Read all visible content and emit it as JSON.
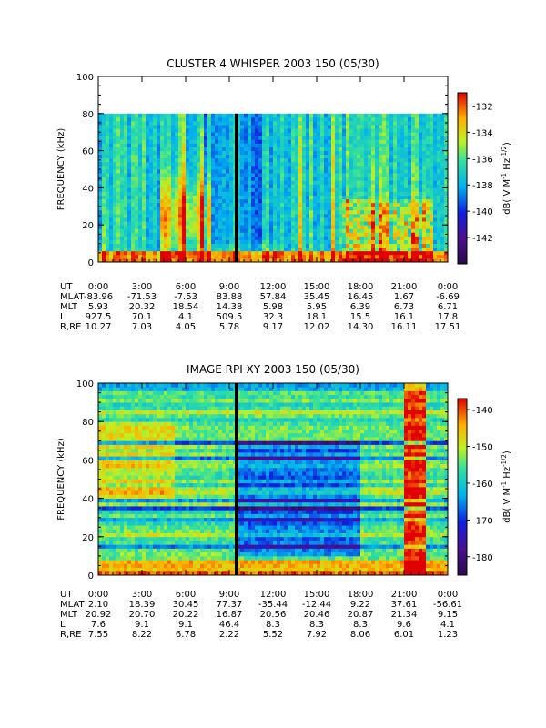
{
  "chart_data": [
    {
      "type": "heatmap",
      "title": "CLUSTER 4 WHISPER 2003 150 (05/30)",
      "ylabel": "FREQUENCY (kHz)",
      "ylim": [
        0,
        100
      ],
      "yticks": [
        "0",
        "20",
        "40",
        "60",
        "80",
        "100"
      ],
      "data_upper_limit_khz": 80,
      "xticks": [
        "0:00",
        "3:00",
        "6:00",
        "9:00",
        "12:00",
        "15:00",
        "18:00",
        "21:00",
        "0:00"
      ],
      "colorbar": {
        "label": "dB( V M⁻¹ Hz⁻¹ᐟ²)",
        "label_parts": [
          "dB( V M",
          "-1",
          " Hz",
          "-1/2",
          ")"
        ],
        "range": [
          -144,
          -131
        ],
        "ticks": [
          "-132",
          "-134",
          "-136",
          "-138",
          "-140",
          "-142"
        ]
      },
      "ephemeris": {
        "labels": [
          "UT",
          "MLAT",
          "MLT",
          "L",
          "R,RE"
        ],
        "rows": [
          [
            "0:00",
            "3:00",
            "6:00",
            "9:00",
            "12:00",
            "15:00",
            "18:00",
            "21:00",
            "0:00"
          ],
          [
            "-83.96",
            "-71.53",
            "-7.53",
            "83.88",
            "57.84",
            "35.45",
            "16.45",
            "1.67",
            "-6.69"
          ],
          [
            "5.93",
            "20.32",
            "18.54",
            "14.38",
            "5.98",
            "5.95",
            "6.39",
            "6.73",
            "6.71"
          ],
          [
            "927.5",
            "70.1",
            "4.1",
            "509.5",
            "32.3",
            "18.1",
            "15.5",
            "16.1",
            "17.8"
          ],
          [
            "10.27",
            "7.03",
            "4.05",
            "5.78",
            "9.17",
            "12.02",
            "14.30",
            "16.11",
            "17.51"
          ]
        ]
      }
    },
    {
      "type": "heatmap",
      "title": "IMAGE RPI XY 2003 150 (05/30)",
      "ylabel": "FREQUENCY (kHz)",
      "ylim": [
        0,
        100
      ],
      "yticks": [
        "0",
        "20",
        "40",
        "60",
        "80",
        "100"
      ],
      "xticks": [
        "0:00",
        "3:00",
        "6:00",
        "9:00",
        "12:00",
        "15:00",
        "18:00",
        "21:00",
        "0:00"
      ],
      "colorbar": {
        "label_parts": [
          "dB( V M",
          "-1",
          " Hz",
          "-1/2",
          ")"
        ],
        "range": [
          -185,
          -137
        ],
        "ticks": [
          "-140",
          "-150",
          "-160",
          "-170",
          "-180"
        ]
      },
      "ephemeris": {
        "labels": [
          "UT",
          "MLAT",
          "MLT",
          "L",
          "R,RE"
        ],
        "rows": [
          [
            "0:00",
            "3:00",
            "6:00",
            "9:00",
            "12:00",
            "15:00",
            "18:00",
            "21:00",
            "0:00"
          ],
          [
            "2.10",
            "18.39",
            "30.45",
            "77.37",
            "-35.44",
            "-12.44",
            "9.22",
            "37.61",
            "-56.61"
          ],
          [
            "20.92",
            "20.70",
            "20.22",
            "16.87",
            "20.56",
            "20.46",
            "20.87",
            "21.34",
            "9.15"
          ],
          [
            "7.6",
            "9.1",
            "9.1",
            "46.4",
            "8.3",
            "8.3",
            "8.3",
            "9.6",
            "4.1"
          ],
          [
            "7.55",
            "8.22",
            "6.78",
            "2.22",
            "5.52",
            "7.92",
            "8.06",
            "6.01",
            "1.23"
          ]
        ]
      }
    }
  ]
}
